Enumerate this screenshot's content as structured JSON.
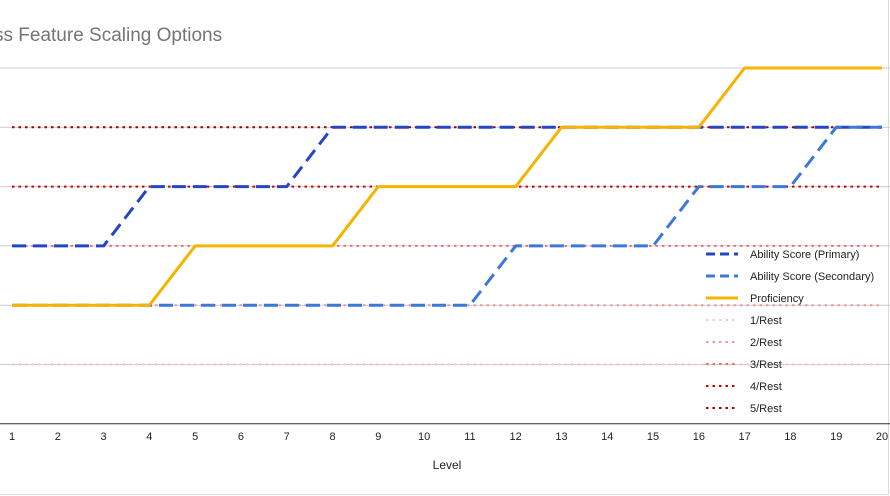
{
  "chart_data": {
    "type": "line",
    "title": "ss Feature Scaling Options",
    "xlabel": "Level",
    "ylabel": "",
    "grid": true,
    "legend_position": "right",
    "x": [
      1,
      2,
      3,
      4,
      5,
      6,
      7,
      8,
      9,
      10,
      11,
      12,
      13,
      14,
      15,
      16,
      17,
      18,
      19,
      20
    ],
    "x_tick_labels": [
      "1",
      "2",
      "3",
      "4",
      "5",
      "6",
      "7",
      "8",
      "9",
      "10",
      "11",
      "12",
      "13",
      "14",
      "15",
      "16",
      "17",
      "18",
      "19",
      "20"
    ],
    "ylim": [
      1,
      7
    ],
    "series": [
      {
        "name": "Ability Score (Primary)",
        "color": "#2446c6",
        "style": "dashed",
        "values": [
          4,
          4,
          4,
          5,
          5,
          5,
          5,
          6,
          6,
          6,
          6,
          6,
          6,
          6,
          6,
          6,
          6,
          6,
          6,
          6
        ]
      },
      {
        "name": "Ability Score (Secondary)",
        "color": "#3c78d8",
        "style": "dashed",
        "values": [
          3,
          3,
          3,
          3,
          3,
          3,
          3,
          3,
          3,
          3,
          3,
          4,
          4,
          4,
          4,
          5,
          5,
          5,
          6,
          6
        ]
      },
      {
        "name": "Proficiency",
        "color": "#f6b400",
        "style": "solid",
        "values": [
          3,
          3,
          3,
          3,
          4,
          4,
          4,
          4,
          5,
          5,
          5,
          5,
          6,
          6,
          6,
          6,
          7,
          7,
          7,
          7
        ]
      },
      {
        "name": "1/Rest",
        "color": "#f4c7cb",
        "style": "dotted",
        "values": [
          2,
          2,
          2,
          2,
          2,
          2,
          2,
          2,
          2,
          2,
          2,
          2,
          2,
          2,
          2,
          2,
          2,
          2,
          2,
          2
        ]
      },
      {
        "name": "2/Rest",
        "color": "#ef9a9a",
        "style": "dotted",
        "values": [
          3,
          3,
          3,
          3,
          3,
          3,
          3,
          3,
          3,
          3,
          3,
          3,
          3,
          3,
          3,
          3,
          3,
          3,
          3,
          3
        ]
      },
      {
        "name": "3/Rest",
        "color": "#e57373",
        "style": "dotted",
        "values": [
          4,
          4,
          4,
          4,
          4,
          4,
          4,
          4,
          4,
          4,
          4,
          4,
          4,
          4,
          4,
          4,
          4,
          4,
          4,
          4
        ]
      },
      {
        "name": "4/Rest",
        "color": "#cc0000",
        "style": "dotted",
        "values": [
          5,
          5,
          5,
          5,
          5,
          5,
          5,
          5,
          5,
          5,
          5,
          5,
          5,
          5,
          5,
          5,
          5,
          5,
          5,
          5
        ]
      },
      {
        "name": "5/Rest",
        "color": "#990000",
        "style": "dotted",
        "values": [
          6,
          6,
          6,
          6,
          6,
          6,
          6,
          6,
          6,
          6,
          6,
          6,
          6,
          6,
          6,
          6,
          6,
          6,
          6,
          6
        ]
      }
    ]
  }
}
